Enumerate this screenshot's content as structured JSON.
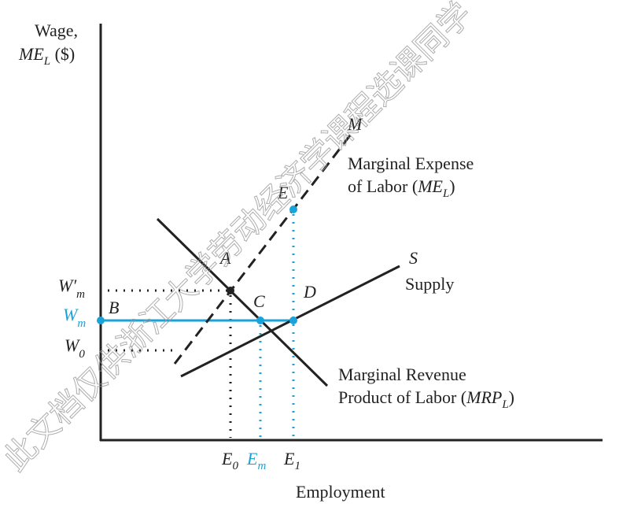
{
  "y_axis_label": {
    "line1": "Wage,",
    "var": "ME",
    "sub": "L",
    "rest": " ($)"
  },
  "x_axis_label": "Employment",
  "points": {
    "A": "A",
    "B": "B",
    "C": "C",
    "D": "D",
    "E": "E",
    "M": "M",
    "S": "S"
  },
  "me_label": {
    "line1": "Marginal Expense",
    "prefix": "of Labor (",
    "var": "ME",
    "sub": "L",
    "suffix": ")"
  },
  "supply_label": "Supply",
  "mrp_label": {
    "line1": "Marginal Revenue",
    "prefix": "Product of Labor (",
    "var": "MRP",
    "sub": "L",
    "suffix": ")"
  },
  "wage_ticks": [
    {
      "var": "W′",
      "sub": "m"
    },
    {
      "var": "W",
      "sub": "m"
    },
    {
      "var": "W",
      "sub": "0"
    }
  ],
  "employment_ticks": [
    {
      "var": "E",
      "sub": "0"
    },
    {
      "var": "E",
      "sub": "m"
    },
    {
      "var": "E",
      "sub": "1"
    }
  ],
  "watermark": "此文档仅供浙江大学劳动经济学课程选课同学"
}
